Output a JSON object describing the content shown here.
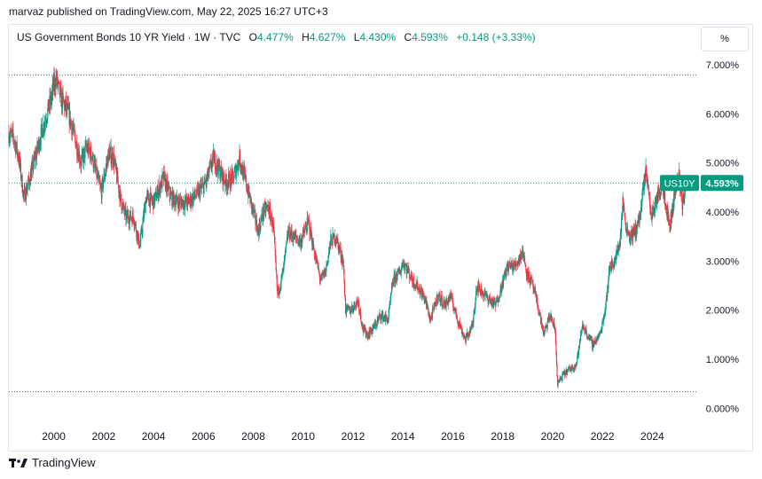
{
  "header": {
    "published_by": "marvaz published on TradingView.com, May 22, 2025 16:27 UTC+3"
  },
  "legend": {
    "symbol": "US Government Bonds 10 YR Yield · 1W · TVC",
    "open_label": "O",
    "open_value": "4.477%",
    "high_label": "H",
    "high_value": "4.627%",
    "low_label": "L",
    "low_value": "4.430%",
    "close_label": "C",
    "close_value": "4.593%",
    "change": "+0.148 (+3.33%)"
  },
  "scale_button": {
    "label": "%"
  },
  "footer": {
    "brand": "TradingView"
  },
  "colors": {
    "up": "#089981",
    "down": "#f23645",
    "text": "#131722",
    "border": "#e0e3eb"
  },
  "chart_data": {
    "type": "candlestick",
    "ticker": "US10Y",
    "last_value": "4.593%",
    "last_numeric": 4.593,
    "x_range": [
      1998.2,
      2025.8
    ],
    "ylim": [
      -0.3,
      7.2
    ],
    "x_tick_labels": [
      "2000",
      "2002",
      "2004",
      "2006",
      "2008",
      "2010",
      "2012",
      "2014",
      "2016",
      "2018",
      "2020",
      "2022",
      "2024"
    ],
    "x_ticks": [
      2000,
      2002,
      2004,
      2006,
      2008,
      2010,
      2012,
      2014,
      2016,
      2018,
      2020,
      2022,
      2024
    ],
    "y_ticks": [
      0,
      1,
      2,
      3,
      4,
      5,
      6,
      7
    ],
    "y_tick_labels": [
      "0.000%",
      "1.000%",
      "2.000%",
      "3.000%",
      "4.000%",
      "5.000%",
      "6.000%",
      "7.000%"
    ],
    "reference_lines": [
      6.79,
      0.34
    ],
    "series_path": [
      [
        1998.2,
        5.6
      ],
      [
        1998.4,
        5.5
      ],
      [
        1998.6,
        5.1
      ],
      [
        1998.8,
        4.3
      ],
      [
        1999.0,
        4.6
      ],
      [
        1999.3,
        5.2
      ],
      [
        1999.6,
        5.8
      ],
      [
        1999.9,
        6.3
      ],
      [
        2000.0,
        6.6
      ],
      [
        2000.1,
        6.7
      ],
      [
        2000.3,
        6.3
      ],
      [
        2000.6,
        6.0
      ],
      [
        2000.9,
        5.4
      ],
      [
        2001.1,
        5.0
      ],
      [
        2001.3,
        5.3
      ],
      [
        2001.5,
        5.2
      ],
      [
        2001.8,
        4.6
      ],
      [
        2001.9,
        4.4
      ],
      [
        2002.2,
        5.2
      ],
      [
        2002.4,
        5.1
      ],
      [
        2002.7,
        4.2
      ],
      [
        2002.9,
        3.9
      ],
      [
        2003.2,
        3.9
      ],
      [
        2003.45,
        3.3
      ],
      [
        2003.7,
        4.3
      ],
      [
        2004.0,
        4.2
      ],
      [
        2004.4,
        4.7
      ],
      [
        2004.7,
        4.3
      ],
      [
        2005.0,
        4.2
      ],
      [
        2005.4,
        4.2
      ],
      [
        2005.8,
        4.4
      ],
      [
        2006.1,
        4.6
      ],
      [
        2006.4,
        5.1
      ],
      [
        2006.7,
        4.8
      ],
      [
        2006.9,
        4.6
      ],
      [
        2007.2,
        4.7
      ],
      [
        2007.45,
        5.1
      ],
      [
        2007.7,
        4.6
      ],
      [
        2007.9,
        4.2
      ],
      [
        2008.2,
        3.6
      ],
      [
        2008.4,
        4.0
      ],
      [
        2008.6,
        4.1
      ],
      [
        2008.8,
        3.7
      ],
      [
        2008.97,
        2.3
      ],
      [
        2009.2,
        2.8
      ],
      [
        2009.4,
        3.6
      ],
      [
        2009.6,
        3.5
      ],
      [
        2009.9,
        3.4
      ],
      [
        2010.2,
        3.8
      ],
      [
        2010.4,
        3.3
      ],
      [
        2010.7,
        2.6
      ],
      [
        2010.9,
        2.8
      ],
      [
        2011.1,
        3.4
      ],
      [
        2011.3,
        3.5
      ],
      [
        2011.6,
        3.0
      ],
      [
        2011.7,
        2.0
      ],
      [
        2011.9,
        2.0
      ],
      [
        2012.2,
        2.2
      ],
      [
        2012.4,
        1.6
      ],
      [
        2012.6,
        1.5
      ],
      [
        2012.9,
        1.7
      ],
      [
        2013.1,
        1.9
      ],
      [
        2013.4,
        1.8
      ],
      [
        2013.6,
        2.6
      ],
      [
        2013.9,
        2.8
      ],
      [
        2014.0,
        3.0
      ],
      [
        2014.4,
        2.6
      ],
      [
        2014.7,
        2.4
      ],
      [
        2014.9,
        2.2
      ],
      [
        2015.1,
        1.8
      ],
      [
        2015.4,
        2.3
      ],
      [
        2015.7,
        2.1
      ],
      [
        2015.9,
        2.3
      ],
      [
        2016.2,
        1.8
      ],
      [
        2016.5,
        1.4
      ],
      [
        2016.8,
        1.7
      ],
      [
        2016.95,
        2.5
      ],
      [
        2017.3,
        2.3
      ],
      [
        2017.7,
        2.1
      ],
      [
        2017.9,
        2.4
      ],
      [
        2018.2,
        2.9
      ],
      [
        2018.5,
        2.9
      ],
      [
        2018.8,
        3.2
      ],
      [
        2018.95,
        2.8
      ],
      [
        2019.2,
        2.5
      ],
      [
        2019.4,
        2.1
      ],
      [
        2019.65,
        1.5
      ],
      [
        2019.9,
        1.9
      ],
      [
        2020.1,
        1.6
      ],
      [
        2020.2,
        0.5
      ],
      [
        2020.45,
        0.7
      ],
      [
        2020.7,
        0.8
      ],
      [
        2020.95,
        0.9
      ],
      [
        2021.2,
        1.7
      ],
      [
        2021.4,
        1.5
      ],
      [
        2021.6,
        1.3
      ],
      [
        2021.9,
        1.5
      ],
      [
        2022.1,
        2.0
      ],
      [
        2022.3,
        2.9
      ],
      [
        2022.5,
        3.0
      ],
      [
        2022.7,
        3.4
      ],
      [
        2022.82,
        4.2
      ],
      [
        2022.95,
        3.7
      ],
      [
        2023.1,
        3.5
      ],
      [
        2023.3,
        3.6
      ],
      [
        2023.5,
        3.9
      ],
      [
        2023.75,
        4.9
      ],
      [
        2023.95,
        3.9
      ],
      [
        2024.2,
        4.3
      ],
      [
        2024.4,
        4.6
      ],
      [
        2024.7,
        3.7
      ],
      [
        2024.9,
        4.4
      ],
      [
        2025.05,
        4.8
      ],
      [
        2025.2,
        4.2
      ],
      [
        2025.4,
        4.5
      ],
      [
        2025.39,
        4.593
      ]
    ]
  }
}
